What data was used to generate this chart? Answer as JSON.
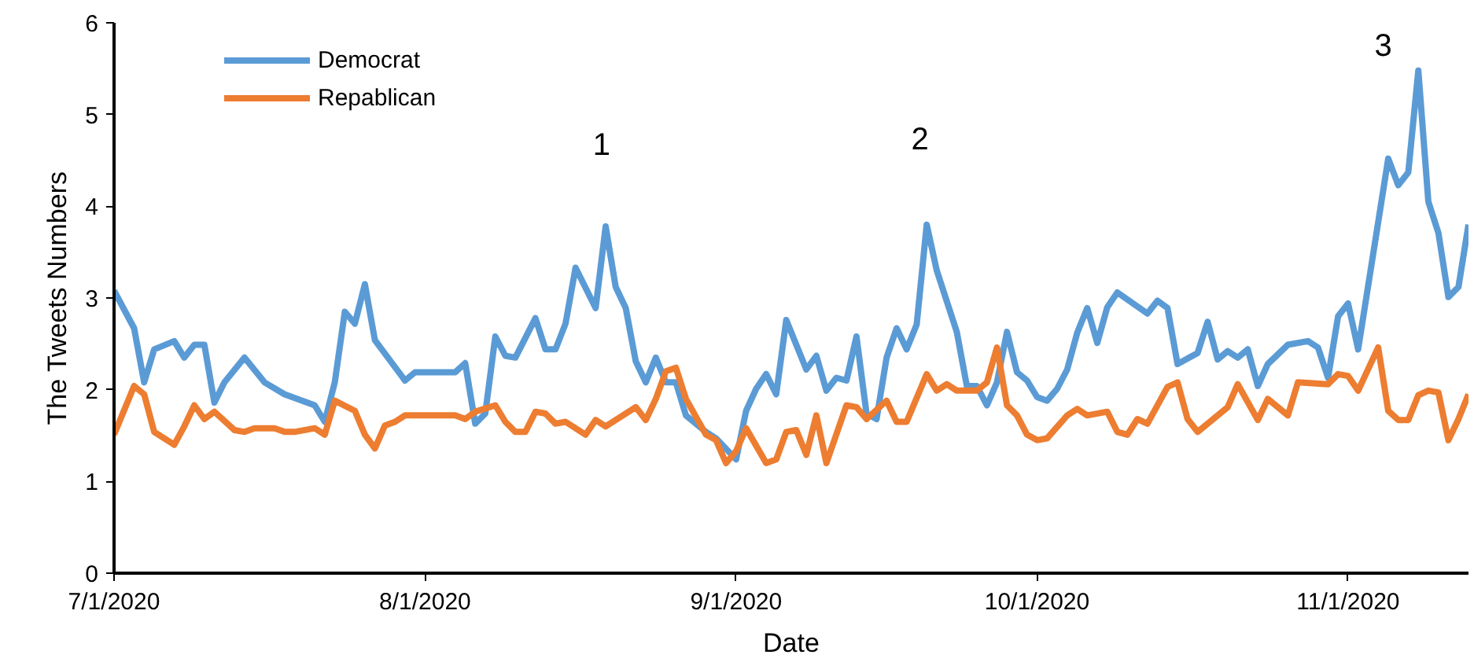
{
  "chart_data": {
    "type": "line",
    "xlabel": "Date",
    "ylabel": "The Tweets Numbers",
    "xlim": [
      "2020-07-01",
      "2020-11-13"
    ],
    "ylim": [
      0,
      6
    ],
    "xticks": [
      {
        "value": "2020-07-01",
        "label": "7/1/2020"
      },
      {
        "value": "2020-08-01",
        "label": "8/1/2020"
      },
      {
        "value": "2020-09-01",
        "label": "9/1/2020"
      },
      {
        "value": "2020-10-01",
        "label": "10/1/2020"
      },
      {
        "value": "2020-11-01",
        "label": "11/1/2020"
      }
    ],
    "yticks": [
      0,
      1,
      2,
      3,
      4,
      5,
      6
    ],
    "grid": false,
    "legend": "top left",
    "marker": "none",
    "line_style": "solid",
    "annotations": [
      "1",
      "2",
      "3"
    ],
    "series": [
      {
        "name": "Democrat",
        "color": "#5b9bd5",
        "x": [
          "2020-07-01",
          "2020-07-03",
          "2020-07-04",
          "2020-07-05",
          "2020-07-07",
          "2020-07-08",
          "2020-07-09",
          "2020-07-10",
          "2020-07-11",
          "2020-07-12",
          "2020-07-14",
          "2020-07-16",
          "2020-07-18",
          "2020-07-21",
          "2020-07-22",
          "2020-07-23",
          "2020-07-24",
          "2020-07-25",
          "2020-07-26",
          "2020-07-27",
          "2020-07-30",
          "2020-07-31",
          "2020-08-04",
          "2020-08-05",
          "2020-08-06",
          "2020-08-07",
          "2020-08-08",
          "2020-08-09",
          "2020-08-10",
          "2020-08-12",
          "2020-08-13",
          "2020-08-14",
          "2020-08-15",
          "2020-08-16",
          "2020-08-18",
          "2020-08-19",
          "2020-08-20",
          "2020-08-21",
          "2020-08-22",
          "2020-08-23",
          "2020-08-24",
          "2020-08-25",
          "2020-08-26",
          "2020-08-27",
          "2020-08-29",
          "2020-08-30",
          "2020-09-01",
          "2020-09-02",
          "2020-09-03",
          "2020-09-04",
          "2020-09-05",
          "2020-09-06",
          "2020-09-08",
          "2020-09-09",
          "2020-09-10",
          "2020-09-11",
          "2020-09-12",
          "2020-09-13",
          "2020-09-14",
          "2020-09-15",
          "2020-09-16",
          "2020-09-17",
          "2020-09-18",
          "2020-09-19",
          "2020-09-20",
          "2020-09-21",
          "2020-09-23",
          "2020-09-24",
          "2020-09-25",
          "2020-09-26",
          "2020-09-27",
          "2020-09-28",
          "2020-09-29",
          "2020-09-30",
          "2020-10-01",
          "2020-10-02",
          "2020-10-03",
          "2020-10-04",
          "2020-10-05",
          "2020-10-06",
          "2020-10-07",
          "2020-10-08",
          "2020-10-09",
          "2020-10-12",
          "2020-10-13",
          "2020-10-14",
          "2020-10-15",
          "2020-10-17",
          "2020-10-18",
          "2020-10-19",
          "2020-10-20",
          "2020-10-21",
          "2020-10-22",
          "2020-10-23",
          "2020-10-24",
          "2020-10-26",
          "2020-10-28",
          "2020-10-29",
          "2020-10-30",
          "2020-10-31",
          "2020-11-01",
          "2020-11-02",
          "2020-11-05",
          "2020-11-06",
          "2020-11-07",
          "2020-11-08",
          "2020-11-09",
          "2020-11-10",
          "2020-11-11",
          "2020-11-12",
          "2020-11-13"
        ],
        "values": [
          3.08,
          2.67,
          2.08,
          2.44,
          2.53,
          2.35,
          2.49,
          2.49,
          1.86,
          2.08,
          2.35,
          2.08,
          1.95,
          1.83,
          1.65,
          2.08,
          2.85,
          2.72,
          3.15,
          2.54,
          2.1,
          2.19,
          2.19,
          2.29,
          1.63,
          1.74,
          2.58,
          2.37,
          2.35,
          2.78,
          2.44,
          2.44,
          2.72,
          3.33,
          2.89,
          3.78,
          3.12,
          2.89,
          2.31,
          2.08,
          2.35,
          2.08,
          2.08,
          1.72,
          1.54,
          1.47,
          1.24,
          1.77,
          2.01,
          2.17,
          1.95,
          2.76,
          2.22,
          2.37,
          1.99,
          2.13,
          2.1,
          2.58,
          1.74,
          1.68,
          2.35,
          2.67,
          2.44,
          2.71,
          3.8,
          3.3,
          2.63,
          2.04,
          2.04,
          1.83,
          2.08,
          2.63,
          2.19,
          2.1,
          1.92,
          1.88,
          2.01,
          2.22,
          2.62,
          2.89,
          2.51,
          2.9,
          3.06,
          2.83,
          2.97,
          2.89,
          2.28,
          2.4,
          2.74,
          2.33,
          2.42,
          2.35,
          2.44,
          2.04,
          2.28,
          2.49,
          2.53,
          2.46,
          2.13,
          2.8,
          2.94,
          2.44,
          4.52,
          4.23,
          4.37,
          5.48,
          4.05,
          3.71,
          3.01,
          3.12,
          3.8
        ]
      },
      {
        "name": "Repablican",
        "color": "#ed7d31",
        "x": [
          "2020-07-01",
          "2020-07-03",
          "2020-07-04",
          "2020-07-05",
          "2020-07-07",
          "2020-07-08",
          "2020-07-09",
          "2020-07-10",
          "2020-07-11",
          "2020-07-13",
          "2020-07-14",
          "2020-07-15",
          "2020-07-17",
          "2020-07-18",
          "2020-07-19",
          "2020-07-21",
          "2020-07-22",
          "2020-07-23",
          "2020-07-25",
          "2020-07-26",
          "2020-07-27",
          "2020-07-28",
          "2020-07-29",
          "2020-07-30",
          "2020-08-04",
          "2020-08-05",
          "2020-08-06",
          "2020-08-08",
          "2020-08-09",
          "2020-08-10",
          "2020-08-11",
          "2020-08-12",
          "2020-08-13",
          "2020-08-14",
          "2020-08-15",
          "2020-08-17",
          "2020-08-18",
          "2020-08-19",
          "2020-08-22",
          "2020-08-23",
          "2020-08-24",
          "2020-08-25",
          "2020-08-26",
          "2020-08-27",
          "2020-08-29",
          "2020-08-30",
          "2020-08-31",
          "2020-09-01",
          "2020-09-02",
          "2020-09-04",
          "2020-09-05",
          "2020-09-06",
          "2020-09-07",
          "2020-09-08",
          "2020-09-09",
          "2020-09-10",
          "2020-09-12",
          "2020-09-13",
          "2020-09-14",
          "2020-09-16",
          "2020-09-17",
          "2020-09-18",
          "2020-09-20",
          "2020-09-21",
          "2020-09-22",
          "2020-09-23",
          "2020-09-25",
          "2020-09-26",
          "2020-09-27",
          "2020-09-28",
          "2020-09-29",
          "2020-09-30",
          "2020-10-01",
          "2020-10-02",
          "2020-10-04",
          "2020-10-05",
          "2020-10-06",
          "2020-10-08",
          "2020-10-09",
          "2020-10-10",
          "2020-10-11",
          "2020-10-12",
          "2020-10-14",
          "2020-10-15",
          "2020-10-16",
          "2020-10-17",
          "2020-10-19",
          "2020-10-20",
          "2020-10-21",
          "2020-10-23",
          "2020-10-24",
          "2020-10-26",
          "2020-10-27",
          "2020-10-30",
          "2020-10-31",
          "2020-11-01",
          "2020-11-02",
          "2020-11-04",
          "2020-11-05",
          "2020-11-06",
          "2020-11-07",
          "2020-11-08",
          "2020-11-09",
          "2020-11-10",
          "2020-11-11",
          "2020-11-12",
          "2020-11-13"
        ],
        "values": [
          1.51,
          2.04,
          1.95,
          1.54,
          1.4,
          1.6,
          1.83,
          1.68,
          1.76,
          1.56,
          1.54,
          1.58,
          1.58,
          1.54,
          1.54,
          1.58,
          1.51,
          1.88,
          1.77,
          1.51,
          1.36,
          1.61,
          1.65,
          1.72,
          1.72,
          1.68,
          1.76,
          1.83,
          1.65,
          1.54,
          1.54,
          1.76,
          1.74,
          1.63,
          1.65,
          1.51,
          1.67,
          1.6,
          1.81,
          1.67,
          1.9,
          2.2,
          2.24,
          1.9,
          1.51,
          1.45,
          1.2,
          1.33,
          1.58,
          1.2,
          1.24,
          1.54,
          1.56,
          1.29,
          1.72,
          1.2,
          1.83,
          1.81,
          1.68,
          1.88,
          1.65,
          1.65,
          2.17,
          1.99,
          2.06,
          1.99,
          1.99,
          2.08,
          2.46,
          1.83,
          1.72,
          1.51,
          1.45,
          1.47,
          1.72,
          1.79,
          1.72,
          1.76,
          1.54,
          1.51,
          1.68,
          1.63,
          2.03,
          2.08,
          1.68,
          1.54,
          1.72,
          1.81,
          2.06,
          1.67,
          1.9,
          1.72,
          2.08,
          2.06,
          2.17,
          2.15,
          1.99,
          2.46,
          1.77,
          1.67,
          1.67,
          1.94,
          1.99,
          1.97,
          1.45,
          1.68,
          1.95
        ]
      }
    ]
  }
}
